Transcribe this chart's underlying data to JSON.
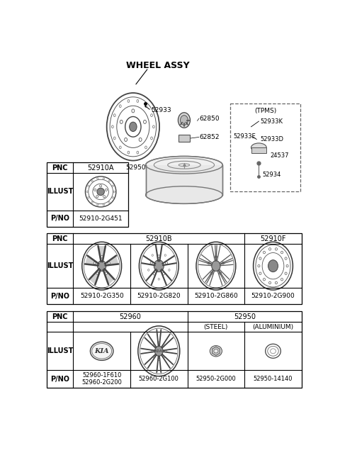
{
  "title": "WHEEL ASSY",
  "bg_color": "#ffffff",
  "text_color": "#000000",
  "table1": {
    "pnc": "52910A",
    "pno": "52910-2G451"
  },
  "table2": {
    "pnc_left": "52910B",
    "pnc_right": "52910F",
    "pno_list": [
      "52910-2G350",
      "52910-2G820",
      "52910-2G860",
      "52910-2G900"
    ]
  },
  "table3": {
    "pnc_left": "52960",
    "pnc_right": "52950",
    "sub_labels": [
      "(STEEL)",
      "(ALUMINIUM)"
    ],
    "pno_list": [
      "52960-1F610\n52960-2G200",
      "52960-2G100",
      "52950-2G000",
      "52950-14140"
    ]
  },
  "diagram_labels": {
    "wheel_assy": "WHEEL ASSY",
    "parts": [
      "52933",
      "52950",
      "62850",
      "62852"
    ],
    "tpms_title": "(TPMS)",
    "tpms_parts": [
      "52933K",
      "52933E",
      "52933D",
      "24537",
      "52934"
    ]
  }
}
